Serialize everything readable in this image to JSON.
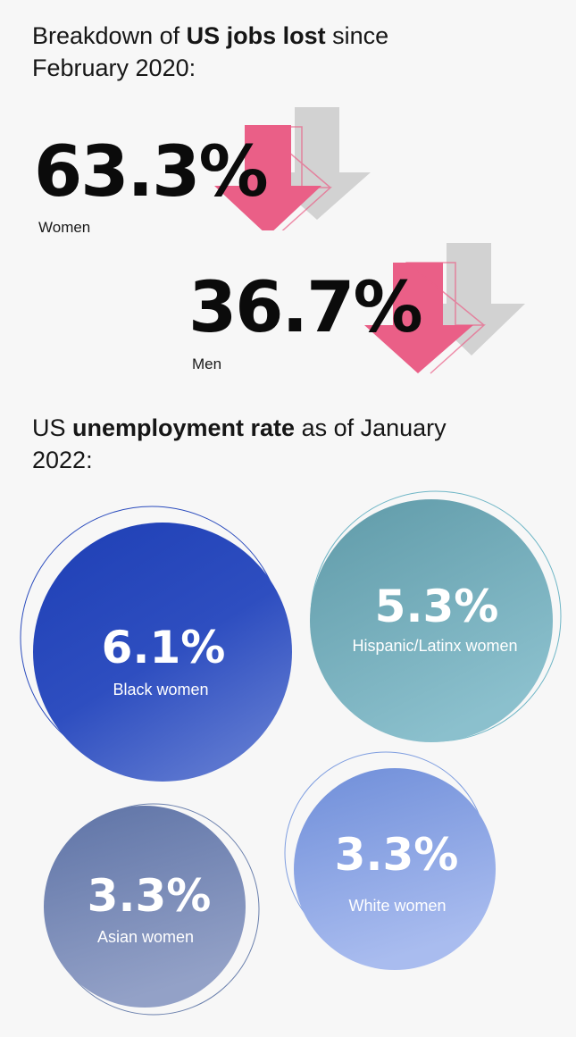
{
  "jobs_lost": {
    "heading_pre": "Breakdown of ",
    "heading_bold": "US jobs lost",
    "heading_post": " since February 2020:",
    "women_pct": "63.3%",
    "women_label": "Women",
    "men_pct": "36.7%",
    "men_label": "Men"
  },
  "unemployment": {
    "heading_pre": "US ",
    "heading_bold": "unemployment rate",
    "heading_post": " as of January 2022:"
  },
  "colors": {
    "arrow_pink": "#ea5f87",
    "arrow_gray": "#c8c8c8",
    "black_women": "#2a4bbd",
    "hispanic_women": "#6fa6b3",
    "asian_women": "#6b80ad",
    "white_women": "#7f9ee0"
  },
  "chart_data": [
    {
      "type": "bar",
      "title": "Breakdown of US jobs lost since February 2020",
      "categories": [
        "Women",
        "Men"
      ],
      "values": [
        63.3,
        36.7
      ],
      "unit": "%"
    },
    {
      "type": "bubble",
      "title": "US unemployment rate as of January 2022",
      "categories": [
        "Black women",
        "Hispanic/Latinx women",
        "Asian women",
        "White women"
      ],
      "values": [
        6.1,
        5.3,
        3.3,
        3.3
      ],
      "labels": [
        "6.1%",
        "5.3%",
        "3.3%",
        "3.3%"
      ],
      "unit": "%"
    }
  ]
}
